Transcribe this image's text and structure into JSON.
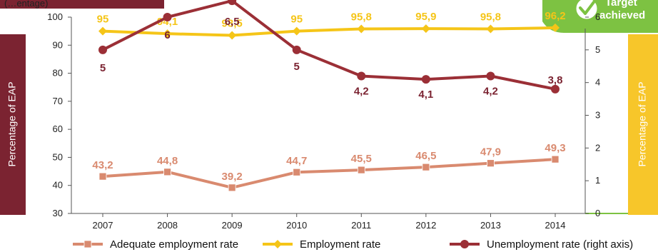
{
  "chart_data": {
    "type": "line",
    "title_fragment": "(…entage)",
    "badge": {
      "line1": "Target",
      "line2": "achieved"
    },
    "categories": [
      "2007",
      "2008",
      "2009",
      "2010",
      "2011",
      "2012",
      "2013",
      "2014"
    ],
    "y_left": {
      "label": "Percentage of EAP",
      "min": 30,
      "max": 100,
      "ticks": [
        30,
        40,
        50,
        60,
        70,
        80,
        90,
        100
      ]
    },
    "y_right": {
      "label": "Percentage of EAP",
      "min": 0,
      "max": 6,
      "ticks": [
        0,
        1,
        2,
        3,
        4,
        5,
        6
      ]
    },
    "series": [
      {
        "name": "Adequate employment rate",
        "axis": "left",
        "color": "#D98A6F",
        "marker": "square",
        "values": [
          43.2,
          44.8,
          39.2,
          44.7,
          45.5,
          46.5,
          47.9,
          49.3
        ],
        "labels": [
          "43,2",
          "44,8",
          "39,2",
          "44,7",
          "45,5",
          "46,5",
          "47,9",
          "49,3"
        ]
      },
      {
        "name": "Employment rate",
        "axis": "left",
        "color": "#F5C518",
        "marker": "diamond",
        "values": [
          95,
          94.1,
          93.5,
          95,
          95.8,
          95.9,
          95.8,
          96.2
        ],
        "labels": [
          "95",
          "94,1",
          "93,5",
          "95",
          "95,8",
          "95,9",
          "95,8",
          "96,2"
        ]
      },
      {
        "name": "Unemployment rate (right axis)",
        "axis": "right",
        "color": "#9B2F36",
        "marker": "circle",
        "values": [
          5.0,
          6.0,
          6.5,
          5.0,
          4.2,
          4.1,
          4.2,
          3.8
        ],
        "labels": [
          "5",
          "6",
          "6,5",
          "5",
          "4,2",
          "4,1",
          "4,2",
          "3,8"
        ]
      }
    ],
    "legend_position": "bottom",
    "grid": false
  }
}
